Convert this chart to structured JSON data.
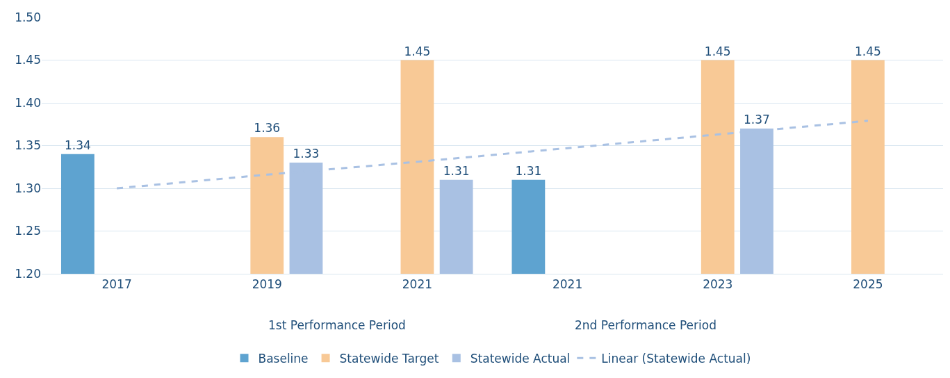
{
  "chart_data": {
    "type": "bar",
    "categories": [
      "2017",
      "2019",
      "2021",
      "2021",
      "2023",
      "2025"
    ],
    "series": [
      {
        "name": "Baseline",
        "color": "#5ea3d0",
        "values": [
          1.34,
          null,
          null,
          1.31,
          null,
          null
        ],
        "value_labels": [
          "1.34",
          null,
          null,
          "1.31",
          null,
          null
        ]
      },
      {
        "name": "Statewide Target",
        "color": "#f8c996",
        "values": [
          null,
          1.36,
          1.45,
          null,
          1.45,
          1.45
        ],
        "value_labels": [
          null,
          "1.36",
          "1.45",
          null,
          "1.45",
          "1.45"
        ]
      },
      {
        "name": "Statewide Actual",
        "color": "#a9c1e3",
        "values": [
          null,
          1.33,
          1.31,
          null,
          1.37,
          null
        ],
        "value_labels": [
          null,
          "1.33",
          "1.31",
          null,
          "1.37",
          null
        ]
      },
      {
        "name": "Linear (Statewide Actual)",
        "type": "line",
        "line_style": "dashed",
        "color": "#a9c1e3",
        "values": [
          1.3,
          1.316,
          1.331,
          1.347,
          1.363,
          1.379
        ]
      }
    ],
    "ylim": [
      1.2,
      1.5
    ],
    "yticks": [
      {
        "value": 1.2,
        "label": "1.20"
      },
      {
        "value": 1.25,
        "label": "1.25"
      },
      {
        "value": 1.3,
        "label": "1.30"
      },
      {
        "value": 1.35,
        "label": "1.35"
      },
      {
        "value": 1.4,
        "label": "1.40"
      },
      {
        "value": 1.45,
        "label": "1.45"
      },
      {
        "value": 1.5,
        "label": "1.50"
      }
    ],
    "grid": "y",
    "legend": "bottom",
    "annotations": [
      "1st Performance Period",
      "2nd Performance Period"
    ]
  }
}
